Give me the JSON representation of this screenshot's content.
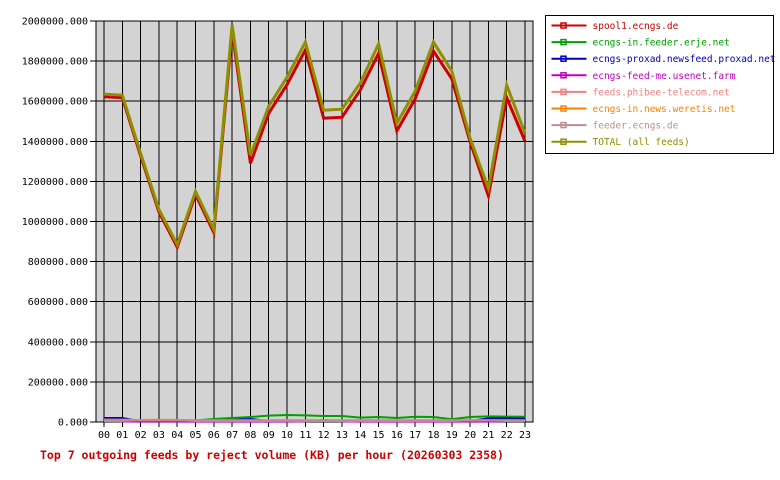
{
  "title": "Top 7 outgoing feeds by reject volume (KB) per hour (20260303 2358)",
  "title_color": "#cc0000",
  "axes": {
    "y_tick_labels": [
      "2000000.000",
      "1800000.000",
      "1600000.000",
      "1400000.000",
      "1200000.000",
      "1000000.000",
      "800000.000",
      "600000.000",
      "400000.000",
      "200000.000",
      "0.000"
    ],
    "x_tick_labels": [
      "00",
      "01",
      "02",
      "03",
      "04",
      "05",
      "06",
      "07",
      "08",
      "09",
      "10",
      "11",
      "12",
      "13",
      "14",
      "15",
      "16",
      "17",
      "18",
      "19",
      "20",
      "21",
      "22",
      "23"
    ]
  },
  "legend": {
    "bg_color": "#ffffff",
    "border_color": "#000000"
  },
  "chart_data": {
    "type": "line",
    "title": "Top 7 outgoing feeds by reject volume (KB) per hour (20260303 2358)",
    "x": [
      "00",
      "01",
      "02",
      "03",
      "04",
      "05",
      "06",
      "07",
      "08",
      "09",
      "10",
      "11",
      "12",
      "13",
      "14",
      "15",
      "16",
      "17",
      "18",
      "19",
      "20",
      "21",
      "22",
      "23"
    ],
    "ylim": [
      0,
      2000000
    ],
    "ytick_step": 200000,
    "grid": true,
    "plot_bg": "#d3d3d3",
    "grid_color": "#000000",
    "legend_position": "outside-top-right",
    "series": [
      {
        "name": "spool1.ecngs.de",
        "color": "#cc0000",
        "width": 3,
        "values": [
          1622000,
          1618000,
          1328000,
          1048000,
          872000,
          1135000,
          945000,
          1950000,
          1290000,
          1540000,
          1683000,
          1855000,
          1515000,
          1520000,
          1655000,
          1838000,
          1452000,
          1612000,
          1850000,
          1712000,
          1398000,
          1128000,
          1618000,
          1400000
        ]
      },
      {
        "name": "ecngs-in.feeder.erje.net",
        "color": "#00a000",
        "width": 2,
        "values": [
          6000,
          6000,
          5000,
          5000,
          5000,
          8000,
          15000,
          20000,
          25000,
          32000,
          35000,
          33000,
          30000,
          30000,
          22000,
          25000,
          20000,
          26000,
          25000,
          14000,
          25000,
          28000,
          27000,
          26000
        ]
      },
      {
        "name": "ecngs-proxad.newsfeed.proxad.net",
        "color": "#0000c0",
        "width": 2,
        "values": [
          20000,
          20000,
          3000,
          3000,
          3000,
          3000,
          5000,
          10000,
          15000,
          5000,
          5000,
          5000,
          5000,
          5000,
          5000,
          5000,
          5000,
          5000,
          5000,
          5000,
          5000,
          18000,
          18000,
          17000
        ]
      },
      {
        "name": "ecngs-feed-me.usenet.farm",
        "color": "#c000c0",
        "width": 2,
        "values": [
          8000,
          3000,
          2000,
          2000,
          2000,
          2000,
          2000,
          2000,
          2000,
          2000,
          2000,
          3000,
          10000,
          3000,
          2000,
          2000,
          2000,
          2000,
          2000,
          2000,
          2000,
          2000,
          5000,
          5000
        ]
      },
      {
        "name": "feeds.phibee-telecom.net",
        "color": "#f08080",
        "width": 2,
        "values": [
          12000,
          12000,
          10000,
          10000,
          10000,
          9000,
          8000,
          8000,
          8000,
          8000,
          8000,
          8000,
          8000,
          8000,
          8000,
          8000,
          8000,
          8000,
          8000,
          8000,
          8000,
          8000,
          8000,
          8000
        ]
      },
      {
        "name": "ecngs-in.news.weretis.net",
        "color": "#ff8000",
        "width": 2,
        "values": [
          5000,
          5000,
          10000,
          11000,
          10000,
          5000,
          5000,
          5000,
          5000,
          5000,
          5000,
          5000,
          5000,
          5000,
          5000,
          5000,
          5000,
          5000,
          5000,
          5000,
          9000,
          9000,
          5000,
          5000
        ]
      },
      {
        "name": "feeder.ecngs.de",
        "color": "#bc8f8f",
        "width": 2,
        "values": [
          10000,
          10000,
          9000,
          9000,
          9000,
          9000,
          9000,
          9000,
          9000,
          9000,
          9000,
          9000,
          9000,
          9000,
          9000,
          9000,
          9000,
          9000,
          9000,
          9000,
          9000,
          9000,
          9000,
          9000
        ]
      },
      {
        "name": "TOTAL (all feeds)",
        "color": "#8f8f00",
        "width": 3,
        "values": [
          1635000,
          1630000,
          1340000,
          1060000,
          885000,
          1150000,
          960000,
          1980000,
          1330000,
          1575000,
          1720000,
          1895000,
          1555000,
          1560000,
          1690000,
          1885000,
          1490000,
          1650000,
          1895000,
          1750000,
          1415000,
          1165000,
          1680000,
          1440000
        ]
      }
    ]
  }
}
